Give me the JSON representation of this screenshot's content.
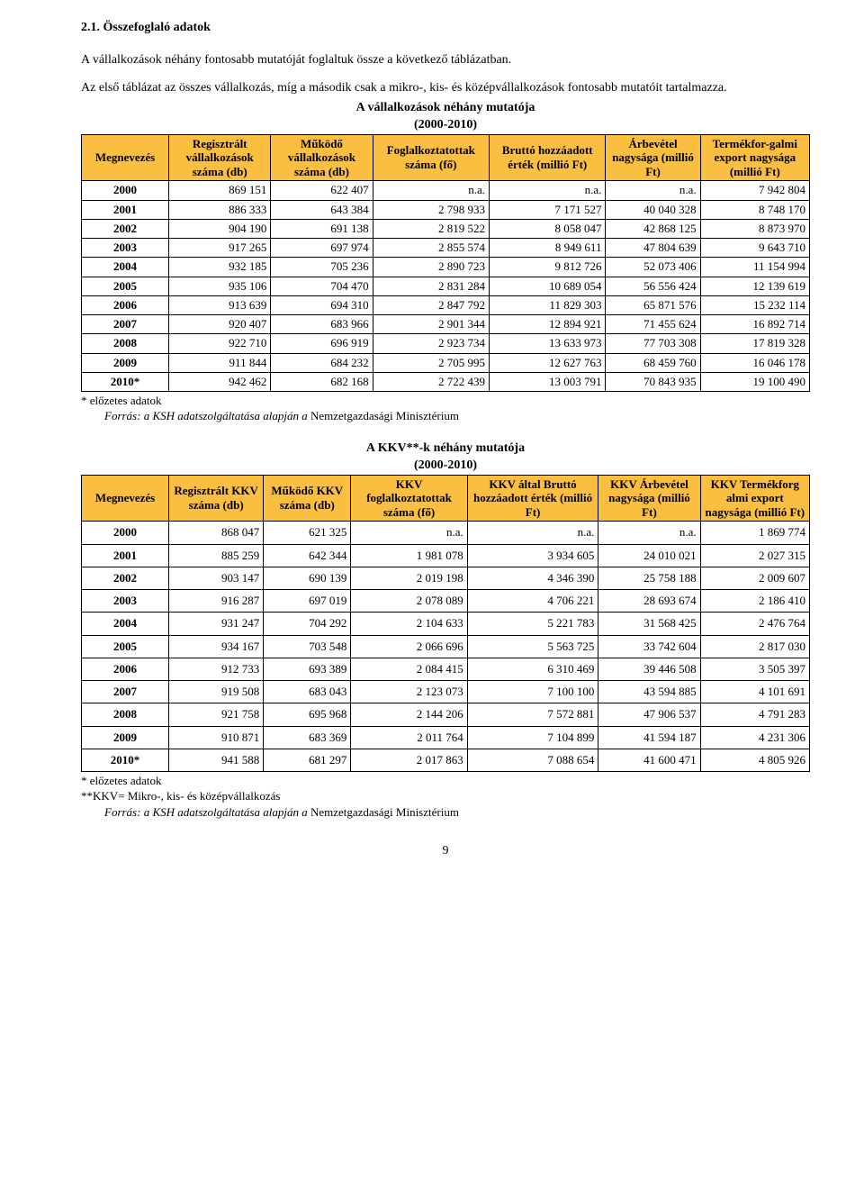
{
  "section_heading": "2.1. Összefoglaló adatok",
  "intro_p1": "A vállalkozások néhány fontosabb mutatóját foglaltuk össze a következő táblázatban.",
  "intro_p2": "Az első táblázat az összes vállalkozás, míg a második csak a mikro-, kis- és középvállalkozások fontosabb mutatóit tartalmazza.",
  "table1": {
    "title": "A vállalkozások néhány mutatója",
    "subtitle": "(2000-2010)",
    "headers": [
      "Megnevezés",
      "Regisztrált vállalkozások száma (db)",
      "Működő vállalkozások száma (db)",
      "Foglalkoztatottak száma (fő)",
      "Bruttó hozzáadott érték (millió Ft)",
      "Árbevétel nagysága (millió Ft)",
      "Termékfor-galmi export nagysága (millió Ft)"
    ],
    "rows": [
      [
        "2000",
        "869 151",
        "622 407",
        "n.a.",
        "n.a.",
        "n.a.",
        "7 942 804"
      ],
      [
        "2001",
        "886 333",
        "643 384",
        "2 798 933",
        "7 171 527",
        "40 040 328",
        "8 748 170"
      ],
      [
        "2002",
        "904 190",
        "691 138",
        "2 819 522",
        "8 058 047",
        "42 868 125",
        "8 873 970"
      ],
      [
        "2003",
        "917 265",
        "697 974",
        "2 855 574",
        "8 949 611",
        "47 804 639",
        "9 643 710"
      ],
      [
        "2004",
        "932 185",
        "705 236",
        "2 890 723",
        "9 812 726",
        "52 073 406",
        "11 154 994"
      ],
      [
        "2005",
        "935 106",
        "704 470",
        "2 831 284",
        "10 689 054",
        "56 556 424",
        "12 139 619"
      ],
      [
        "2006",
        "913 639",
        "694 310",
        "2 847 792",
        "11 829 303",
        "65 871 576",
        "15 232 114"
      ],
      [
        "2007",
        "920 407",
        "683 966",
        "2 901 344",
        "12 894 921",
        "71 455 624",
        "16 892 714"
      ],
      [
        "2008",
        "922 710",
        "696 919",
        "2 923 734",
        "13 633 973",
        "77 703 308",
        "17 819 328"
      ],
      [
        "2009",
        "911 844",
        "684 232",
        "2 705 995",
        "12 627 763",
        "68 459 760",
        "16 046 178"
      ],
      [
        "2010*",
        "942 462",
        "682 168",
        "2 722 439",
        "13 003 791",
        "70 843 935",
        "19 100 490"
      ]
    ],
    "footnote1": "* előzetes adatok",
    "footnote2_a": "Forrás: a KSH adatszolgáltatása alapján a",
    "footnote2_b": " Nemzetgazdasági Minisztérium"
  },
  "table2": {
    "title": "A KKV**-k néhány mutatója",
    "subtitle": "(2000-2010)",
    "headers": [
      "Megnevezés",
      "Regisztrált KKV száma (db)",
      "Működő KKV száma (db)",
      "KKV foglalkoztatottak száma (fő)",
      "KKV által Bruttó hozzáadott érték (millió Ft)",
      "KKV Árbevétel nagysága (millió Ft)",
      "KKV Termékforg almi export nagysága (millió Ft)"
    ],
    "rows": [
      [
        "2000",
        "868 047",
        "621 325",
        "n.a.",
        "n.a.",
        "n.a.",
        "1 869 774"
      ],
      [
        "2001",
        "885 259",
        "642 344",
        "1 981 078",
        "3 934 605",
        "24 010 021",
        "2 027 315"
      ],
      [
        "2002",
        "903 147",
        "690 139",
        "2 019 198",
        "4 346 390",
        "25 758 188",
        "2 009 607"
      ],
      [
        "2003",
        "916 287",
        "697 019",
        "2 078 089",
        "4 706 221",
        "28 693 674",
        "2 186 410"
      ],
      [
        "2004",
        "931 247",
        "704 292",
        "2 104 633",
        "5 221 783",
        "31 568 425",
        "2 476 764"
      ],
      [
        "2005",
        "934 167",
        "703 548",
        "2 066 696",
        "5 563 725",
        "33 742 604",
        "2 817 030"
      ],
      [
        "2006",
        "912 733",
        "693 389",
        "2 084 415",
        "6 310 469",
        "39 446 508",
        "3 505 397"
      ],
      [
        "2007",
        "919 508",
        "683 043",
        "2 123 073",
        "7 100 100",
        "43 594 885",
        "4 101 691"
      ],
      [
        "2008",
        "921 758",
        "695 968",
        "2 144 206",
        "7 572 881",
        "47 906 537",
        "4 791 283"
      ],
      [
        "2009",
        "910 871",
        "683 369",
        "2 011 764",
        "7 104 899",
        "41 594 187",
        "4 231 306"
      ],
      [
        "2010*",
        "941 588",
        "681 297",
        "2 017 863",
        "7 088 654",
        "41 600 471",
        "4 805 926"
      ]
    ],
    "footnote1": "* előzetes adatok",
    "footnote2": "**KKV= Mikro-, kis- és középvállalkozás",
    "footnote3_a": "Forrás: a KSH adatszolgáltatása alapján a",
    "footnote3_b": " Nemzetgazdasági Minisztérium"
  },
  "page_number": "9",
  "col_widths_t1": [
    "12%",
    "14%",
    "14%",
    "16%",
    "16%",
    "13%",
    "15%"
  ],
  "col_widths_t2": [
    "12%",
    "13%",
    "12%",
    "16%",
    "18%",
    "14%",
    "15%"
  ]
}
